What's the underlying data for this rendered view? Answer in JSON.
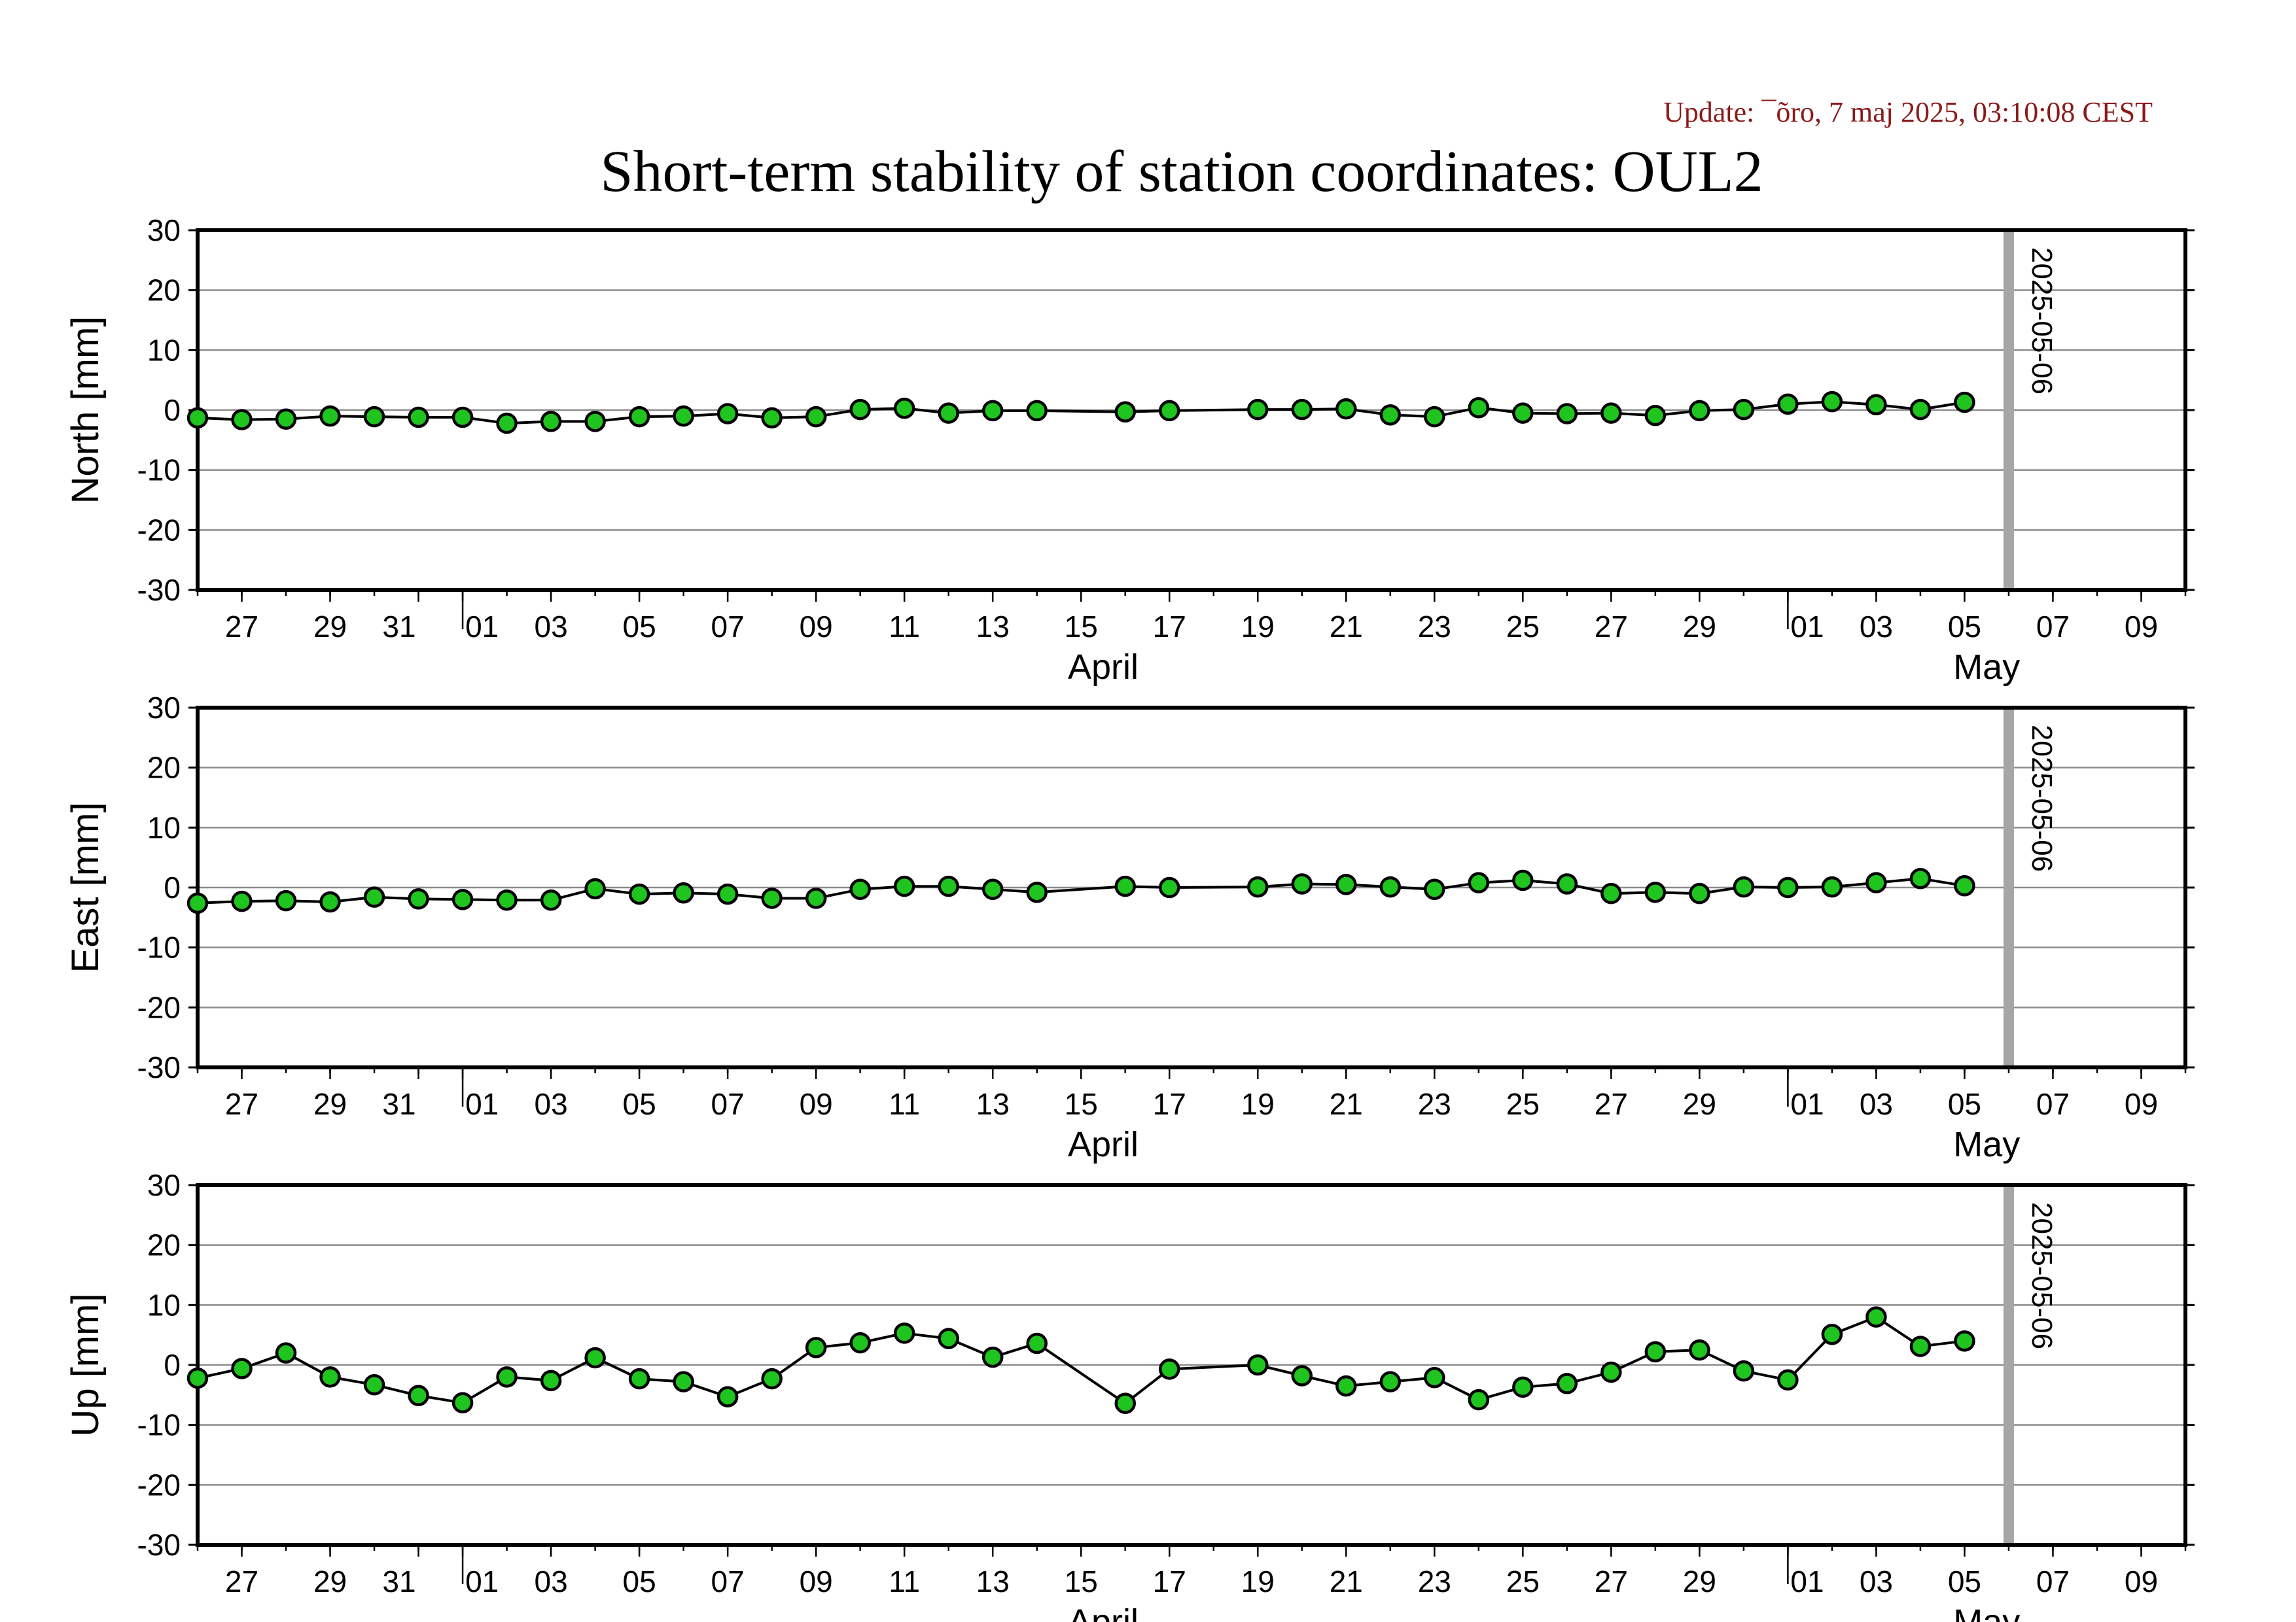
{
  "update_text": "Update: ¯õro, 7 maj 2025, 03:10:08 CEST",
  "title": "Short-term stability of station coordinates: OUL2",
  "colors": {
    "marker_fill": "#1fc41f",
    "marker_stroke": "#000000",
    "line": "#000000",
    "grid": "#8c8c8c",
    "today_line": "#a6a6a6",
    "update_text": "#8b1a1a"
  },
  "chart_data": [
    {
      "type": "line",
      "ylabel": "North [mm]",
      "ylim": [
        -30,
        30
      ],
      "yticks": [
        30,
        20,
        10,
        0,
        -10,
        -20,
        -30
      ],
      "grid": true,
      "x_range": [
        "2025-03-26",
        "2025-05-10"
      ],
      "x_tick_labels": [
        "27",
        "29",
        "31",
        "01",
        "03",
        "05",
        "07",
        "09",
        "11",
        "13",
        "15",
        "17",
        "19",
        "21",
        "23",
        "25",
        "27",
        "29",
        "01",
        "03",
        "05",
        "07",
        "09"
      ],
      "month_labels": [
        "April",
        "May"
      ],
      "marker_label": "2025-05-06",
      "series": [
        {
          "x": [
            "2025-03-26",
            "2025-03-27",
            "2025-03-28",
            "2025-03-29",
            "2025-03-30",
            "2025-03-31",
            "2025-04-01",
            "2025-04-02",
            "2025-04-03",
            "2025-04-04",
            "2025-04-05",
            "2025-04-06",
            "2025-04-07",
            "2025-04-08",
            "2025-04-09",
            "2025-04-10",
            "2025-04-11",
            "2025-04-12",
            "2025-04-13",
            "2025-04-14",
            "2025-04-16",
            "2025-04-17",
            "2025-04-19",
            "2025-04-20",
            "2025-04-21",
            "2025-04-22",
            "2025-04-23",
            "2025-04-24",
            "2025-04-25",
            "2025-04-26",
            "2025-04-27",
            "2025-04-28",
            "2025-04-29",
            "2025-04-30",
            "2025-05-01",
            "2025-05-02",
            "2025-05-03",
            "2025-05-04",
            "2025-05-05"
          ],
          "y": [
            -1.3,
            -1.6,
            -1.5,
            -1.0,
            -1.1,
            -1.2,
            -1.2,
            -2.2,
            -1.9,
            -1.9,
            -1.1,
            -1.0,
            -0.6,
            -1.3,
            -1.1,
            0.1,
            0.3,
            -0.5,
            -0.1,
            -0.1,
            -0.3,
            -0.1,
            0.1,
            0.1,
            0.2,
            -0.8,
            -1.1,
            0.4,
            -0.5,
            -0.6,
            -0.5,
            -0.9,
            -0.1,
            0.1,
            1.0,
            1.4,
            0.9,
            0.1,
            1.3
          ]
        }
      ]
    },
    {
      "type": "line",
      "ylabel": "East [mm]",
      "ylim": [
        -30,
        30
      ],
      "yticks": [
        30,
        20,
        10,
        0,
        -10,
        -20,
        -30
      ],
      "grid": true,
      "x_range": [
        "2025-03-26",
        "2025-05-10"
      ],
      "x_tick_labels": [
        "27",
        "29",
        "31",
        "01",
        "03",
        "05",
        "07",
        "09",
        "11",
        "13",
        "15",
        "17",
        "19",
        "21",
        "23",
        "25",
        "27",
        "29",
        "01",
        "03",
        "05",
        "07",
        "09"
      ],
      "month_labels": [
        "April",
        "May"
      ],
      "marker_label": "2025-05-06",
      "series": [
        {
          "x": [
            "2025-03-26",
            "2025-03-27",
            "2025-03-28",
            "2025-03-29",
            "2025-03-30",
            "2025-03-31",
            "2025-04-01",
            "2025-04-02",
            "2025-04-03",
            "2025-04-04",
            "2025-04-05",
            "2025-04-06",
            "2025-04-07",
            "2025-04-08",
            "2025-04-09",
            "2025-04-10",
            "2025-04-11",
            "2025-04-12",
            "2025-04-13",
            "2025-04-14",
            "2025-04-16",
            "2025-04-17",
            "2025-04-19",
            "2025-04-20",
            "2025-04-21",
            "2025-04-22",
            "2025-04-23",
            "2025-04-24",
            "2025-04-25",
            "2025-04-26",
            "2025-04-27",
            "2025-04-28",
            "2025-04-29",
            "2025-04-30",
            "2025-05-01",
            "2025-05-02",
            "2025-05-03",
            "2025-05-04",
            "2025-05-05"
          ],
          "y": [
            -2.6,
            -2.3,
            -2.2,
            -2.4,
            -1.6,
            -1.9,
            -2.0,
            -2.1,
            -2.1,
            -0.2,
            -1.1,
            -0.9,
            -1.1,
            -1.8,
            -1.8,
            -0.3,
            0.2,
            0.2,
            -0.3,
            -0.8,
            0.2,
            0.0,
            0.1,
            0.6,
            0.5,
            0.1,
            -0.3,
            0.8,
            1.2,
            0.6,
            -1.0,
            -0.8,
            -1.0,
            0.1,
            0.0,
            0.1,
            0.8,
            1.5,
            0.3
          ]
        }
      ]
    },
    {
      "type": "line",
      "ylabel": "Up [mm]",
      "ylim": [
        -30,
        30
      ],
      "yticks": [
        30,
        20,
        10,
        0,
        -10,
        -20,
        -30
      ],
      "grid": true,
      "x_range": [
        "2025-03-26",
        "2025-05-10"
      ],
      "x_tick_labels": [
        "27",
        "29",
        "31",
        "01",
        "03",
        "05",
        "07",
        "09",
        "11",
        "13",
        "15",
        "17",
        "19",
        "21",
        "23",
        "25",
        "27",
        "29",
        "01",
        "03",
        "05",
        "07",
        "09"
      ],
      "month_labels": [
        "April",
        "May"
      ],
      "marker_label": "2025-05-06",
      "series": [
        {
          "x": [
            "2025-03-26",
            "2025-03-27",
            "2025-03-28",
            "2025-03-29",
            "2025-03-30",
            "2025-03-31",
            "2025-04-01",
            "2025-04-02",
            "2025-04-03",
            "2025-04-04",
            "2025-04-05",
            "2025-04-06",
            "2025-04-07",
            "2025-04-08",
            "2025-04-09",
            "2025-04-10",
            "2025-04-11",
            "2025-04-12",
            "2025-04-13",
            "2025-04-14",
            "2025-04-16",
            "2025-04-17",
            "2025-04-19",
            "2025-04-20",
            "2025-04-21",
            "2025-04-22",
            "2025-04-23",
            "2025-04-24",
            "2025-04-25",
            "2025-04-26",
            "2025-04-27",
            "2025-04-28",
            "2025-04-29",
            "2025-04-30",
            "2025-05-01",
            "2025-05-02",
            "2025-05-03",
            "2025-05-04",
            "2025-05-05"
          ],
          "y": [
            -2.2,
            -0.6,
            2.0,
            -2.0,
            -3.3,
            -5.1,
            -6.3,
            -2.0,
            -2.6,
            1.2,
            -2.3,
            -2.8,
            -5.3,
            -2.3,
            2.9,
            3.7,
            5.3,
            4.4,
            1.3,
            3.6,
            -6.4,
            -0.7,
            0.0,
            -1.8,
            -3.5,
            -2.8,
            -2.1,
            -5.8,
            -3.7,
            -3.1,
            -1.2,
            2.2,
            2.5,
            -1.0,
            -2.5,
            5.1,
            8.0,
            3.1,
            4.0
          ]
        }
      ]
    }
  ]
}
